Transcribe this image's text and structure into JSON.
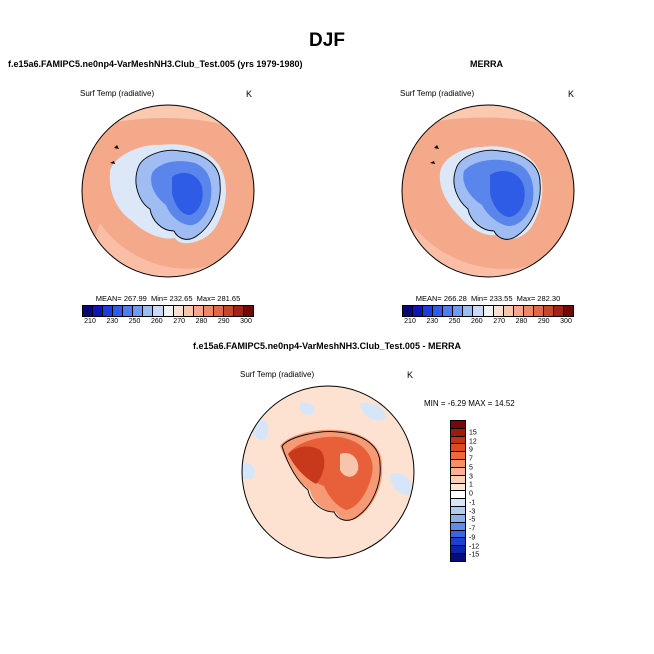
{
  "main_title": "DJF",
  "variable_label": "Surf Temp (radiative)",
  "unit": "K",
  "panels": [
    {
      "title": "f.e15a6.FAMIPC5.ne0np4-VarMeshNH3.Club_Test.005 (yrs 1979-1980)",
      "mean_text": "MEAN= 267.99",
      "min_text": "Min= 232.65",
      "max_text": "Max= 281.65"
    },
    {
      "title": "MERRA",
      "mean_text": "MEAN= 266.28",
      "min_text": "Min= 233.55",
      "max_text": "Max= 282.30"
    },
    {
      "title": "f.e15a6.FAMIPC5.ne0np4-VarMeshNH3.Club_Test.005 - MERRA",
      "minmax_text": "MIN = -6.29 MAX = 14.52"
    }
  ],
  "abs_colorbar": {
    "colors": [
      "#08067a",
      "#0d14b8",
      "#1a3ce0",
      "#2f5de8",
      "#4b7ef0",
      "#6f9bf2",
      "#9cbcf4",
      "#c8daf8",
      "#f2f2f2",
      "#fde0d0",
      "#fbc5ac",
      "#f7a888",
      "#f08a66",
      "#e06a48",
      "#c4472d",
      "#9c2414",
      "#700a05"
    ],
    "ticks": [
      "210",
      "230",
      "250",
      "260",
      "270",
      "280",
      "290",
      "300"
    ]
  },
  "diff_colorbar": {
    "colors": [
      "#7a0606",
      "#a01a0c",
      "#c43216",
      "#dd4a22",
      "#ee6a3c",
      "#f58f66",
      "#f9b193",
      "#fccfb8",
      "#fde6d8",
      "#ffffff",
      "#d7e7f8",
      "#b4ccf2",
      "#8ab0ee",
      "#5f8cea",
      "#3866e0",
      "#1a42cc",
      "#0c24a8",
      "#060c78"
    ],
    "ticks": [
      "15",
      "12",
      "9",
      "7",
      "5",
      "3",
      "1",
      "0",
      "-1",
      "-3",
      "-5",
      "-7",
      "-9",
      "-12",
      "-15"
    ]
  },
  "map_colors": {
    "ocean_warm": "#f5a98b",
    "ocean_pale": "#fbc8b0",
    "sea_ice": "#dce8f8",
    "ice_edge": "#9fbdf2",
    "ice_mid": "#5a86ec",
    "ice_deep": "#2f5ce6",
    "diff_bg": "#fde2d2",
    "diff_light_blue": "#d6e6f8",
    "diff_red_dark": "#c8391c",
    "diff_red": "#e8603a",
    "diff_red_light": "#f59a74"
  }
}
